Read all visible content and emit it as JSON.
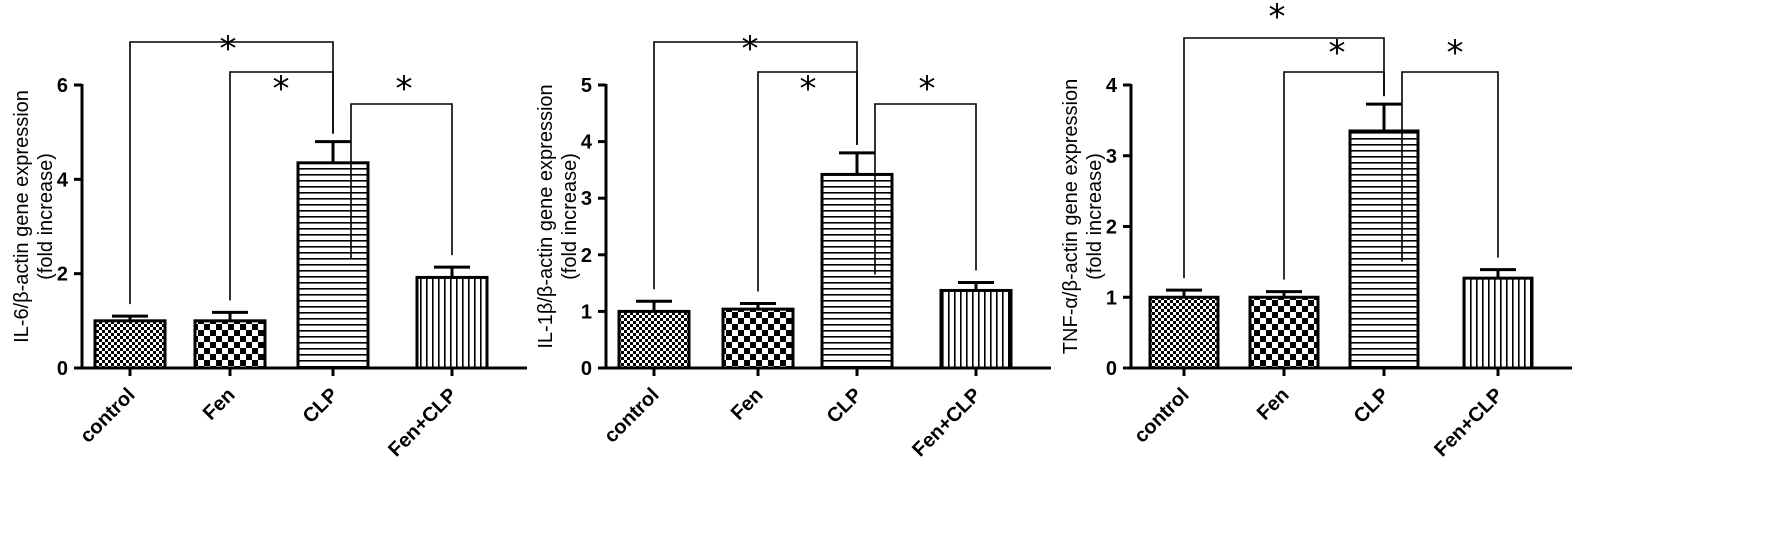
{
  "chart_data": [
    {
      "type": "bar",
      "categories": [
        "control",
        "Fen",
        "CLP",
        "Fen+CLP"
      ],
      "values": [
        1.0,
        1.0,
        4.35,
        1.92
      ],
      "errors": [
        0.1,
        0.18,
        0.45,
        0.22
      ],
      "ylabel_line1": "IL-6/β-actin gene expression",
      "ylabel_line2": "(fold increase)",
      "ylim": [
        0,
        6
      ],
      "yticks": [
        "0",
        "2",
        "4",
        "6"
      ],
      "ytick_values": [
        0,
        2,
        4,
        6
      ],
      "significance": [
        {
          "from": 0,
          "to": 2,
          "label": "*"
        },
        {
          "from": 1,
          "to": 2,
          "label": "*"
        },
        {
          "from": 2,
          "to": 3,
          "label": "*"
        }
      ]
    },
    {
      "type": "bar",
      "categories": [
        "control",
        "Fen",
        "CLP",
        "Fen+CLP"
      ],
      "values": [
        1.0,
        1.04,
        3.42,
        1.37
      ],
      "errors": [
        0.18,
        0.1,
        0.38,
        0.14
      ],
      "ylabel_line1": "IL-1β/β-actin gene expression",
      "ylabel_line2": "(fold increase)",
      "ylim": [
        0,
        5
      ],
      "yticks": [
        "0",
        "1",
        "2",
        "3",
        "4",
        "5"
      ],
      "ytick_values": [
        0,
        1,
        2,
        3,
        4,
        5
      ],
      "significance": [
        {
          "from": 0,
          "to": 2,
          "label": "*"
        },
        {
          "from": 1,
          "to": 2,
          "label": "*"
        },
        {
          "from": 2,
          "to": 3,
          "label": "*"
        }
      ]
    },
    {
      "type": "bar",
      "categories": [
        "control",
        "Fen",
        "CLP",
        "Fen+CLP"
      ],
      "values": [
        1.0,
        1.0,
        3.35,
        1.27
      ],
      "errors": [
        0.1,
        0.08,
        0.38,
        0.12
      ],
      "ylabel_line1": "TNF-α/β-actin gene expression",
      "ylabel_line2": "(fold increase)",
      "ylim": [
        0,
        4
      ],
      "yticks": [
        "0",
        "1",
        "2",
        "3",
        "4"
      ],
      "ytick_values": [
        0,
        1,
        2,
        3,
        4
      ],
      "significance": [
        {
          "from": 0,
          "to": 2,
          "label": "*"
        },
        {
          "from": 1,
          "to": 2,
          "label": "*"
        },
        {
          "from": 2,
          "to": 3,
          "label": "*"
        }
      ]
    }
  ]
}
